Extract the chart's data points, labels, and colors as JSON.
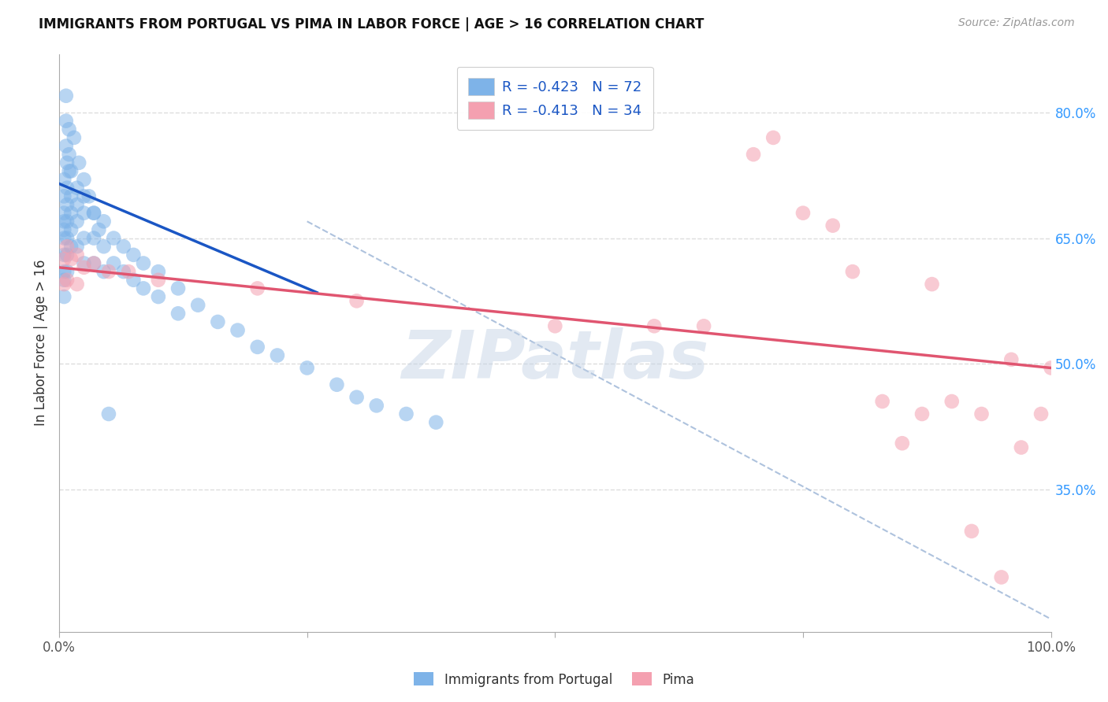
{
  "title": "IMMIGRANTS FROM PORTUGAL VS PIMA IN LABOR FORCE | AGE > 16 CORRELATION CHART",
  "source": "Source: ZipAtlas.com",
  "ylabel": "In Labor Force | Age > 16",
  "xlim": [
    0.0,
    1.0
  ],
  "ylim": [
    0.18,
    0.87
  ],
  "ytick_positions": [
    0.35,
    0.5,
    0.65,
    0.8
  ],
  "ytick_labels": [
    "35.0%",
    "50.0%",
    "65.0%",
    "80.0%"
  ],
  "blue_R": -0.423,
  "blue_N": 72,
  "pink_R": -0.413,
  "pink_N": 34,
  "blue_color": "#7eb3e8",
  "pink_color": "#f4a0b0",
  "blue_line_color": "#1a56c4",
  "pink_line_color": "#e05570",
  "dashed_line_color": "#a0b8d8",
  "legend_label_blue": "Immigrants from Portugal",
  "legend_label_pink": "Pima",
  "blue_scatter_x": [
    0.005,
    0.005,
    0.005,
    0.005,
    0.005,
    0.005,
    0.005,
    0.005,
    0.005,
    0.005,
    0.008,
    0.008,
    0.008,
    0.008,
    0.008,
    0.008,
    0.008,
    0.012,
    0.012,
    0.012,
    0.012,
    0.012,
    0.018,
    0.018,
    0.018,
    0.018,
    0.025,
    0.025,
    0.025,
    0.025,
    0.035,
    0.035,
    0.035,
    0.045,
    0.045,
    0.045,
    0.055,
    0.055,
    0.065,
    0.065,
    0.075,
    0.075,
    0.085,
    0.085,
    0.1,
    0.1,
    0.12,
    0.12,
    0.14,
    0.16,
    0.18,
    0.2,
    0.22,
    0.25,
    0.28,
    0.3,
    0.32,
    0.35,
    0.38,
    0.007,
    0.007,
    0.007,
    0.01,
    0.01,
    0.01,
    0.015,
    0.02,
    0.025,
    0.03,
    0.035,
    0.04,
    0.05
  ],
  "blue_scatter_y": [
    0.72,
    0.7,
    0.68,
    0.67,
    0.66,
    0.65,
    0.63,
    0.61,
    0.6,
    0.58,
    0.74,
    0.71,
    0.69,
    0.67,
    0.65,
    0.63,
    0.61,
    0.73,
    0.7,
    0.68,
    0.66,
    0.64,
    0.71,
    0.69,
    0.67,
    0.64,
    0.7,
    0.68,
    0.65,
    0.62,
    0.68,
    0.65,
    0.62,
    0.67,
    0.64,
    0.61,
    0.65,
    0.62,
    0.64,
    0.61,
    0.63,
    0.6,
    0.62,
    0.59,
    0.61,
    0.58,
    0.59,
    0.56,
    0.57,
    0.55,
    0.54,
    0.52,
    0.51,
    0.495,
    0.475,
    0.46,
    0.45,
    0.44,
    0.43,
    0.82,
    0.79,
    0.76,
    0.78,
    0.75,
    0.73,
    0.77,
    0.74,
    0.72,
    0.7,
    0.68,
    0.66,
    0.44
  ],
  "pink_scatter_x": [
    0.005,
    0.005,
    0.008,
    0.008,
    0.012,
    0.018,
    0.018,
    0.025,
    0.035,
    0.05,
    0.07,
    0.1,
    0.2,
    0.3,
    0.5,
    0.6,
    0.65,
    0.7,
    0.72,
    0.75,
    0.78,
    0.8,
    0.83,
    0.85,
    0.87,
    0.88,
    0.9,
    0.92,
    0.93,
    0.95,
    0.96,
    0.97,
    0.99,
    1.0
  ],
  "pink_scatter_y": [
    0.625,
    0.595,
    0.64,
    0.6,
    0.625,
    0.63,
    0.595,
    0.615,
    0.62,
    0.61,
    0.61,
    0.6,
    0.59,
    0.575,
    0.545,
    0.545,
    0.545,
    0.75,
    0.77,
    0.68,
    0.665,
    0.61,
    0.455,
    0.405,
    0.44,
    0.595,
    0.455,
    0.3,
    0.44,
    0.245,
    0.505,
    0.4,
    0.44,
    0.495
  ],
  "blue_trendline_x": [
    0.0,
    0.26
  ],
  "blue_trendline_y": [
    0.715,
    0.585
  ],
  "pink_trendline_x": [
    0.0,
    1.0
  ],
  "pink_trendline_y": [
    0.615,
    0.495
  ],
  "dashed_line_x": [
    0.25,
    1.0
  ],
  "dashed_line_y": [
    0.67,
    0.195
  ],
  "figsize": [
    14.06,
    8.92
  ],
  "dpi": 100
}
